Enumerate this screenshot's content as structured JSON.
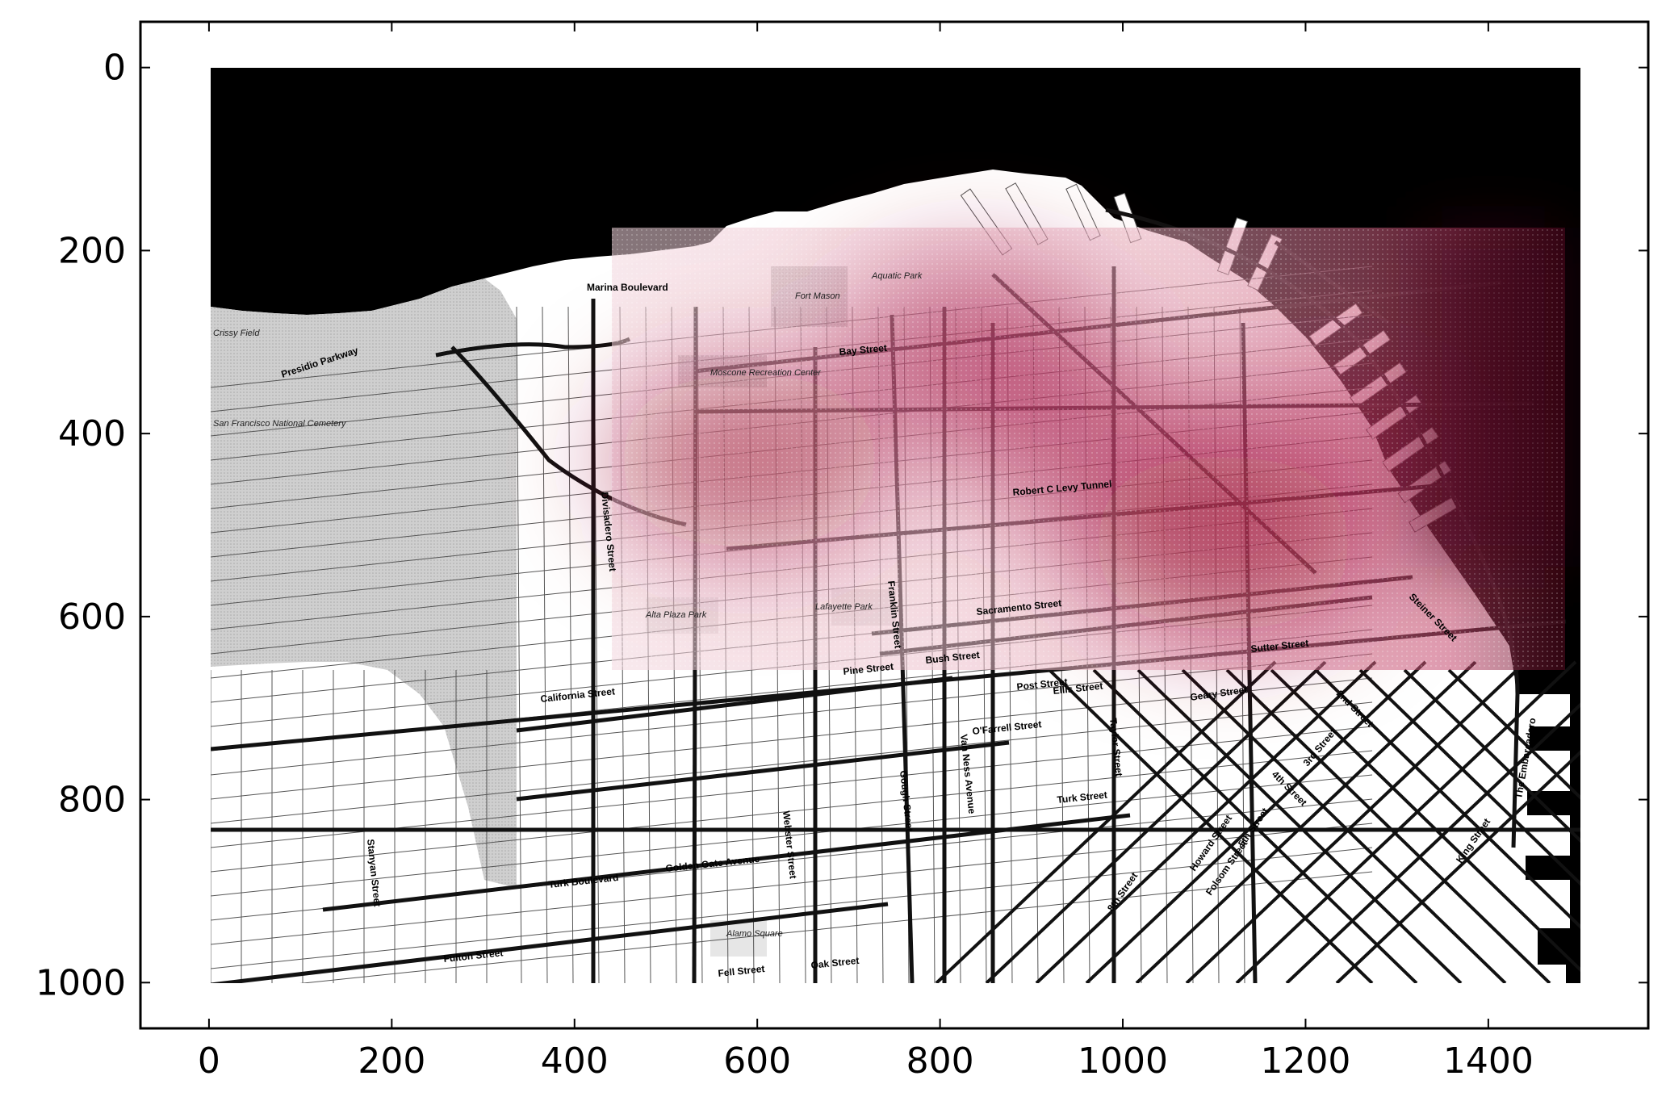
{
  "chart_data": {
    "type": "heatmap",
    "title": "",
    "xlabel": "",
    "ylabel": "",
    "xlim": [
      -75,
      1575
    ],
    "ylim": [
      1050,
      -50
    ],
    "y_inverted": true,
    "x_ticks": [
      0,
      200,
      400,
      600,
      800,
      1000,
      1200,
      1400
    ],
    "y_ticks": [
      0,
      200,
      400,
      600,
      800,
      1000
    ],
    "background_map_extent": {
      "x": [
        0,
        1500
      ],
      "y": [
        0,
        1000
      ]
    },
    "heatmap_extent": {
      "x": [
        437,
        1485
      ],
      "y": [
        175,
        660
      ]
    },
    "heatmap_colormap": "white-to-crimson (reds)",
    "heatmap_hotspots": [
      {
        "x": 590,
        "y": 430,
        "level": 0.78
      },
      {
        "x": 840,
        "y": 310,
        "level": 0.72
      },
      {
        "x": 1110,
        "y": 520,
        "level": 0.88
      },
      {
        "x": 980,
        "y": 420,
        "level": 0.6
      },
      {
        "x": 1240,
        "y": 420,
        "level": 0.45
      }
    ],
    "grid": false,
    "legend": "none"
  },
  "colors": {
    "water": "#000000",
    "park": "#c4c4c4",
    "land": "#ffffff",
    "heat_high": "#9b0c36",
    "heat_low": "#f3d3dc"
  },
  "map_labels": {
    "streets": [
      "Marina Boulevard",
      "Presidio Parkway",
      "Bay Street",
      "Robert C Levy Tunnel",
      "Divisadero Street",
      "Franklin Street",
      "Sacramento Street",
      "Pine Street",
      "Bush Street",
      "Post Street",
      "Geary Street",
      "Sutter Street",
      "O'Farrell Street",
      "Turk Street",
      "Turk Boulevard",
      "Golden Gate Avenue",
      "California Street",
      "Fulton Street",
      "Fell Street",
      "Oak Street",
      "Webster Street",
      "Gough Street",
      "Van Ness Avenue",
      "Taylor Street",
      "Stanyan Street",
      "2nd Street",
      "3rd Street",
      "4th Street",
      "5th Street",
      "8th Street",
      "Howard Street",
      "Folsom Street",
      "King Street",
      "The Embarcadero",
      "Steiner Street",
      "Ellis Street"
    ],
    "places": [
      "Fort Mason",
      "Aquatic Park",
      "Alta Plaza Park",
      "Lafayette Park",
      "Alamo Square",
      "Moscone Recreation Center",
      "Crissy Field",
      "San Francisco National Cemetery"
    ]
  }
}
